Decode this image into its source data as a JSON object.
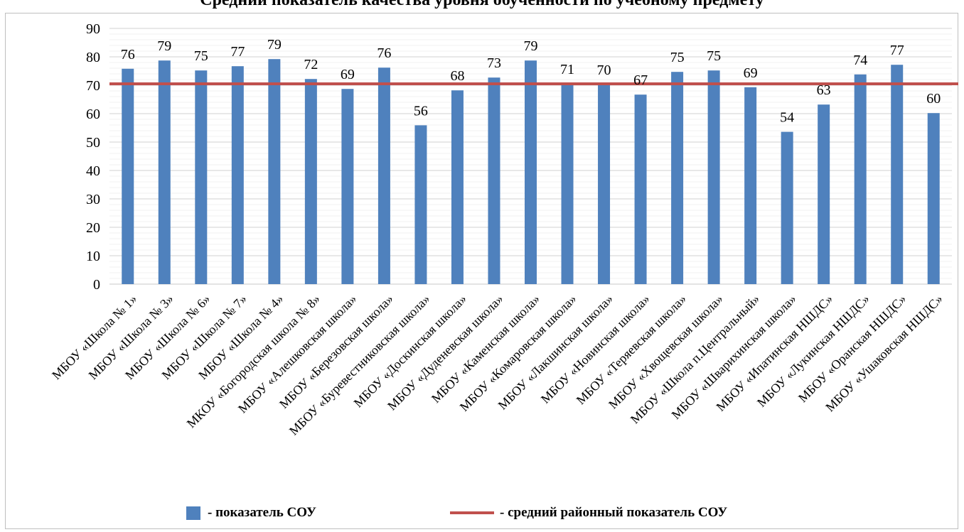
{
  "title": "Средний показатель качества уровня обученности по учебному предмету",
  "chart_data": {
    "type": "bar",
    "ylim": [
      0,
      90
    ],
    "yticks": [
      0,
      10,
      20,
      30,
      40,
      50,
      60,
      70,
      80,
      90
    ],
    "grid": true,
    "legend_position": "bottom",
    "categories": [
      "МБОУ «Школа № 1»",
      "МБОУ «Школа № 3»",
      "МБОУ «Школа № 6»",
      "МБОУ «Школа № 7»",
      "МБОУ «Школа № 4»",
      "МКОУ «Богородская школа № 8»",
      "МБОУ «Алешковская школа»",
      "МБОУ «Березовская школа»",
      "МБОУ «Буревестниковская школа»",
      "МБОУ «Доскинская школа»",
      "МБОУ «Дуденевская школа»",
      "МБОУ «Каменская школа»",
      "МБОУ «Комаровская школа»",
      "МБОУ «Лакшинская школа»",
      "МБОУ «Новинская школа»",
      "МБОУ «Теряевская школа»",
      "МБОУ «Хвощевская школа»",
      "МБОУ «Школа п.Центральный»",
      "МБОУ «Шварихинская школа»",
      "МБОУ «Ипатинская НШДС»",
      "МБОУ «Лукинская НШДС»",
      "МБОУ «Оранская НШДС»",
      "МБОУ «Ушаковская НШДС»"
    ],
    "series": [
      {
        "name": "- показатель СОУ",
        "color": "#4f81bd",
        "values": [
          75.8,
          78.7,
          75.2,
          76.7,
          79.2,
          72.2,
          68.7,
          76.2,
          55.9,
          68.2,
          72.7,
          78.7,
          70.5,
          70.3,
          66.7,
          74.7,
          75.2,
          69.3,
          53.6,
          63.2,
          73.8,
          77.2,
          60.2
        ],
        "labels": [
          "76",
          "79",
          "75",
          "77",
          "79",
          "72",
          "69",
          "76",
          "56",
          "68",
          "73",
          "79",
          "71",
          "70",
          "67",
          "75",
          "75",
          "69",
          "54",
          "63",
          "74",
          "77",
          "60"
        ]
      }
    ],
    "reference_line": {
      "name": "- средний районный показатель СОУ",
      "value": 70.5,
      "color": "#c0504d"
    }
  }
}
